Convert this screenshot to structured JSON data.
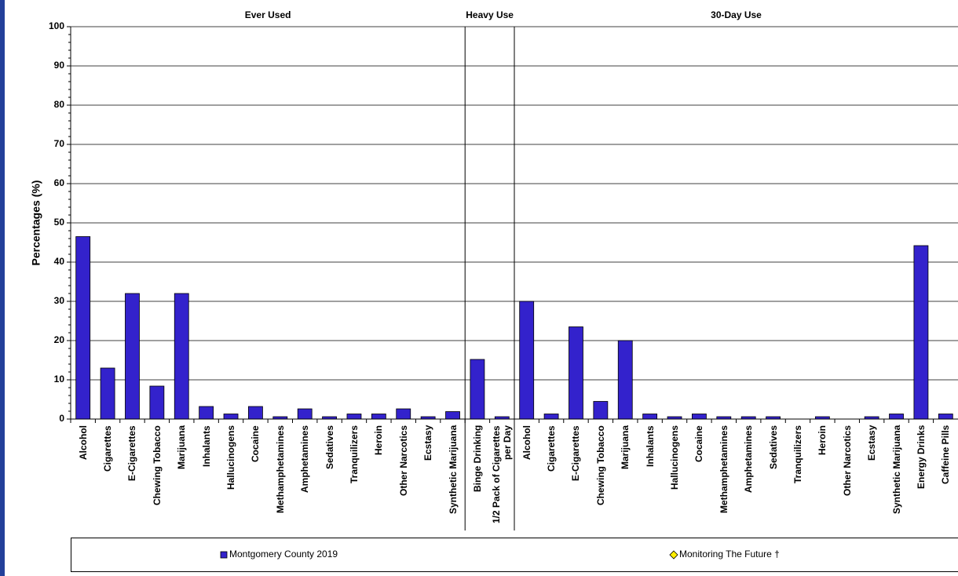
{
  "chart_data": {
    "type": "bar",
    "y_label": "Percentages (%)",
    "groups": [
      {
        "name": "Ever Used",
        "categories": [
          "Alcohol",
          "Cigarettes",
          "E-Cigarettes",
          "Chewing Tobacco",
          "Marijuana",
          "Inhalants",
          "Hallucinogens",
          "Cocaine",
          "Methamphetamines",
          "Amphetamines",
          "Sedatives",
          "Tranquilizers",
          "Heroin",
          "Other Narcotics",
          "Ecstasy",
          "Synthetic Marijuana"
        ]
      },
      {
        "name": "Heavy Use",
        "categories": [
          "Binge Drinking",
          "1/2 Pack of Cigarettes per Day"
        ]
      },
      {
        "name": "30-Day Use",
        "categories": [
          "Alcohol",
          "Cigarettes",
          "E-Cigarettes",
          "Chewing Tobacco",
          "Marijuana",
          "Inhalants",
          "Hallucinogens",
          "Cocaine",
          "Methamphetamines",
          "Amphetamines",
          "Sedatives",
          "Tranquilizers",
          "Heroin",
          "Other Narcotics",
          "Ecstasy",
          "Synthetic Marijuana",
          "Energy Drinks",
          "Caffeine Pills"
        ]
      }
    ],
    "series": [
      {
        "name": "Montgomery County 2019",
        "color": "#3322cc",
        "marker": "square",
        "values": [
          46.5,
          13,
          32,
          8.4,
          32,
          3.2,
          1.3,
          3.2,
          0.6,
          2.6,
          0.6,
          1.3,
          1.3,
          2.6,
          0.6,
          1.9,
          15.2,
          0.6,
          30,
          1.3,
          23.5,
          4.5,
          20,
          1.3,
          0.6,
          1.3,
          0.6,
          0.6,
          0.6,
          0,
          0.6,
          0,
          0.6,
          1.3,
          44.2,
          1.3
        ]
      },
      {
        "name": "Monitoring The Future †",
        "color": "#ffee00",
        "marker": "diamond",
        "values": [
          null,
          null,
          null,
          null,
          null,
          null,
          null,
          null,
          null,
          null,
          null,
          null,
          null,
          null,
          null,
          null,
          null,
          null,
          null,
          null,
          null,
          null,
          null,
          null,
          null,
          null,
          null,
          null,
          null,
          null,
          null,
          null,
          null,
          null,
          null,
          null
        ]
      }
    ],
    "ylim": [
      0,
      100
    ],
    "yticks": [
      0,
      10,
      20,
      30,
      40,
      50,
      60,
      70,
      80,
      90,
      100
    ],
    "grid": true
  }
}
